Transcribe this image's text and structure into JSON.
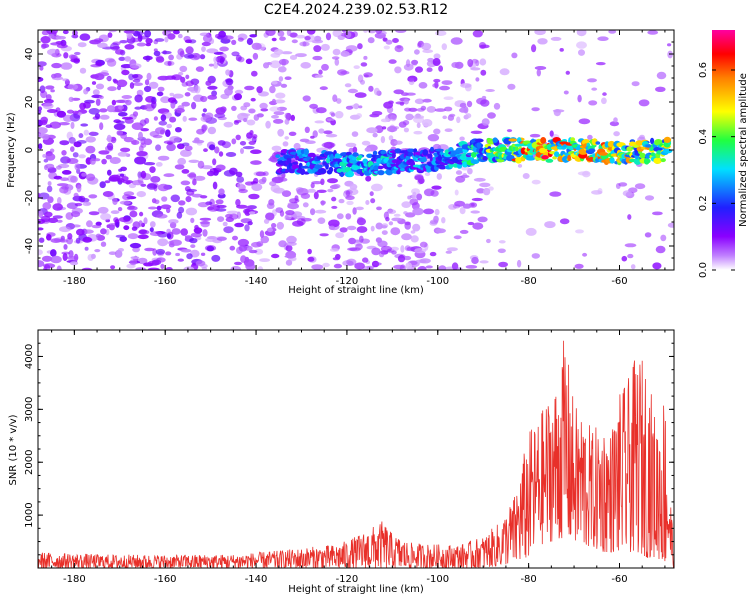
{
  "title": "C2E4.2024.239.02.53.R12",
  "chart_data": [
    {
      "type": "heatmap",
      "xlabel": "Height of straight line (km)",
      "ylabel": "Frequency (Hz)",
      "xlim": [
        -188,
        -48
      ],
      "ylim": [
        -50,
        50
      ],
      "x_ticks": [
        -180,
        -160,
        -140,
        -120,
        -100,
        -80,
        -60
      ],
      "x_tick_labels": [
        "-180",
        "-160",
        "-140",
        "-120",
        "-100",
        "-80",
        "-60"
      ],
      "y_ticks": [
        -40,
        -20,
        0,
        20,
        40
      ],
      "y_tick_labels": [
        "-40",
        "-20",
        "0",
        "20",
        "40"
      ],
      "colorbar": {
        "label": "Normalized spectral amplitude",
        "range": [
          0,
          0.72
        ],
        "ticks": [
          0.0,
          0.2,
          0.4,
          0.6
        ],
        "tick_labels": [
          "0.0",
          "0.2",
          "0.4",
          "0.6"
        ],
        "colormap": [
          "#ffffff",
          "#8a00ff",
          "#2020ff",
          "#00ffff",
          "#20ff20",
          "#ffff00",
          "#ff8000",
          "#ff0000",
          "#ff00a0"
        ]
      },
      "signal_track": {
        "description_free_values": true,
        "x": [
          -130,
          -120,
          -110,
          -100,
          -90,
          -80,
          -70,
          -60,
          -50
        ],
        "frequency": [
          -5,
          -6,
          -5,
          -4,
          0,
          0,
          0,
          -1,
          0
        ],
        "peak_amplitude": [
          0.25,
          0.35,
          0.3,
          0.28,
          0.4,
          0.65,
          0.6,
          0.55,
          0.5
        ]
      }
    },
    {
      "type": "line",
      "xlabel": "Height of straight line (km)",
      "ylabel": "SNR (10 * v/v)",
      "xlim": [
        -188,
        -48
      ],
      "ylim": [
        0,
        4500
      ],
      "x_ticks": [
        -180,
        -160,
        -140,
        -120,
        -100,
        -80,
        -60
      ],
      "x_tick_labels": [
        "-180",
        "-160",
        "-140",
        "-120",
        "-100",
        "-80",
        "-60"
      ],
      "y_ticks": [
        1000,
        2000,
        3000,
        4000
      ],
      "y_tick_labels": [
        "1000",
        "2000",
        "3000",
        "4000"
      ],
      "line_color": "#e8302a",
      "envelope": {
        "x": [
          -188,
          -175,
          -160,
          -145,
          -135,
          -128,
          -122,
          -118,
          -114,
          -112,
          -110,
          -106,
          -100,
          -95,
          -90,
          -86,
          -83,
          -80,
          -78,
          -76,
          -74,
          -72,
          -70,
          -68,
          -66,
          -64,
          -62,
          -60,
          -58,
          -56,
          -54,
          -52,
          -50,
          -48
        ],
        "min": [
          0,
          0,
          0,
          0,
          0,
          0,
          0,
          0,
          0,
          0,
          0,
          0,
          0,
          0,
          0,
          50,
          100,
          200,
          400,
          500,
          500,
          600,
          500,
          400,
          400,
          300,
          300,
          300,
          300,
          300,
          200,
          200,
          100,
          0
        ],
        "max": [
          300,
          260,
          250,
          260,
          330,
          400,
          450,
          600,
          800,
          900,
          650,
          480,
          450,
          450,
          600,
          900,
          1400,
          2600,
          2800,
          3200,
          3500,
          4450,
          3100,
          3000,
          2600,
          2800,
          2600,
          3300,
          3600,
          4100,
          3900,
          2800,
          3400,
          300
        ]
      }
    }
  ]
}
